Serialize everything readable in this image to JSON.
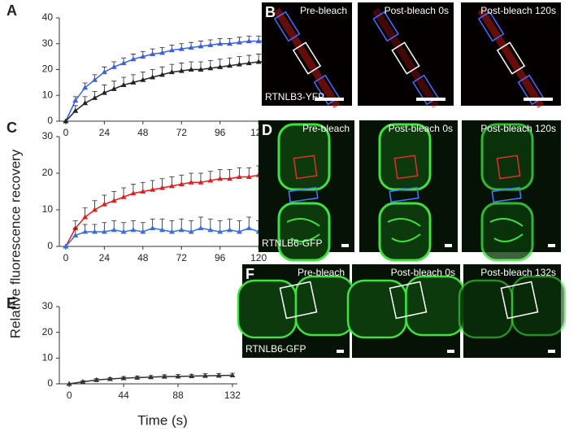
{
  "axis_labels": {
    "y": "Relative fluorescence recovery",
    "x": "Time (s)"
  },
  "chart_data": [
    {
      "type": "line",
      "label": "A",
      "xlim": [
        -4,
        126
      ],
      "ylim": [
        0,
        40
      ],
      "xticks": [
        0,
        24,
        48,
        72,
        96,
        120
      ],
      "yticks": [
        0,
        10,
        20,
        30,
        40
      ],
      "x": [
        0,
        6,
        12,
        18,
        24,
        30,
        36,
        42,
        48,
        54,
        60,
        66,
        72,
        78,
        84,
        90,
        96,
        102,
        108,
        114,
        120,
        126
      ],
      "series": [
        {
          "color": "#3a5fe0",
          "values": [
            0,
            8,
            13,
            16,
            19,
            21,
            22.5,
            24,
            25,
            26,
            26.5,
            27.5,
            28,
            28.5,
            29,
            29.5,
            30,
            30,
            30.5,
            31,
            31,
            31
          ],
          "errors": [
            0,
            1.5,
            1.8,
            2,
            2,
            2,
            2,
            2,
            2,
            2,
            2,
            2,
            2,
            2,
            2,
            2,
            2,
            2,
            2,
            2,
            2,
            2
          ]
        },
        {
          "color": "#222222",
          "values": [
            0,
            4,
            7,
            9,
            11,
            12.5,
            14,
            15,
            16,
            17,
            18,
            19,
            19.5,
            20,
            20,
            20.5,
            21,
            21.5,
            22,
            22.5,
            23,
            23
          ],
          "errors": [
            0,
            2,
            2.5,
            2.5,
            3,
            3,
            3,
            3,
            3,
            3,
            3,
            3,
            3,
            3,
            3,
            3,
            3,
            3,
            3,
            3,
            3,
            3
          ]
        }
      ]
    },
    {
      "type": "line",
      "label": "C",
      "xlim": [
        -4,
        126
      ],
      "ylim": [
        0,
        30
      ],
      "xticks": [
        0,
        24,
        48,
        72,
        96,
        120
      ],
      "yticks": [
        0,
        10,
        20,
        30
      ],
      "x": [
        0,
        6,
        12,
        18,
        24,
        30,
        36,
        42,
        48,
        54,
        60,
        66,
        72,
        78,
        84,
        90,
        96,
        102,
        108,
        114,
        120,
        126
      ],
      "series": [
        {
          "color": "#e02020",
          "values": [
            0,
            5,
            8,
            10,
            11.5,
            12.5,
            13.5,
            14.5,
            15,
            15.5,
            16,
            16.5,
            17,
            17.5,
            17.5,
            18,
            18.5,
            18.5,
            19,
            19,
            19.5,
            19
          ],
          "errors": [
            0,
            2,
            2.5,
            2.5,
            2.5,
            2.5,
            2.5,
            2.5,
            2.5,
            2.5,
            2.5,
            2.5,
            2.5,
            2.5,
            2.5,
            2.5,
            2.5,
            2.5,
            2.5,
            2.5,
            2.5,
            2.5
          ]
        },
        {
          "color": "#3a6fd8",
          "values": [
            0,
            3,
            4,
            4,
            4,
            4.5,
            4,
            4.5,
            4,
            5,
            4.5,
            4,
            4.5,
            4,
            5,
            4.5,
            4,
            4.5,
            4,
            5,
            4,
            3
          ],
          "errors": [
            0,
            2,
            2,
            2,
            2.5,
            2.5,
            2.5,
            2.5,
            2.5,
            2.5,
            3,
            3,
            3,
            3,
            3,
            3,
            3,
            3,
            3,
            3,
            3,
            3
          ]
        }
      ]
    },
    {
      "type": "line",
      "label": "E",
      "xlim": [
        -8,
        136
      ],
      "ylim": [
        0,
        30
      ],
      "xticks": [
        0,
        44,
        88,
        132
      ],
      "yticks": [
        0,
        10,
        20,
        30
      ],
      "x": [
        0,
        11,
        22,
        33,
        44,
        55,
        66,
        77,
        88,
        99,
        110,
        121,
        132
      ],
      "series": [
        {
          "color": "#333333",
          "values": [
            0,
            0.8,
            1.5,
            1.9,
            2.2,
            2.4,
            2.6,
            2.8,
            2.9,
            3.0,
            3.1,
            3.2,
            3.3
          ],
          "errors": [
            0,
            0.4,
            0.5,
            0.5,
            0.6,
            0.6,
            0.6,
            0.7,
            0.7,
            0.7,
            0.8,
            0.8,
            0.8
          ]
        }
      ]
    }
  ],
  "images": [
    {
      "label": "B",
      "frames": [
        "Pre-bleach",
        "Post-bleach 0s",
        "Post-bleach 120s"
      ],
      "caption": "RTNLB3-YFP"
    },
    {
      "label": "D",
      "frames": [
        "Pre-bleach",
        "Post-bleach 0s",
        "Post-bleach 120s"
      ],
      "caption": "RTNLB6-GFP"
    },
    {
      "label": "F",
      "frames": [
        "Pre-bleach",
        "Post-bleach 0s",
        "Post-bleach 132s"
      ],
      "caption": "RTNLB6-GFP"
    }
  ]
}
